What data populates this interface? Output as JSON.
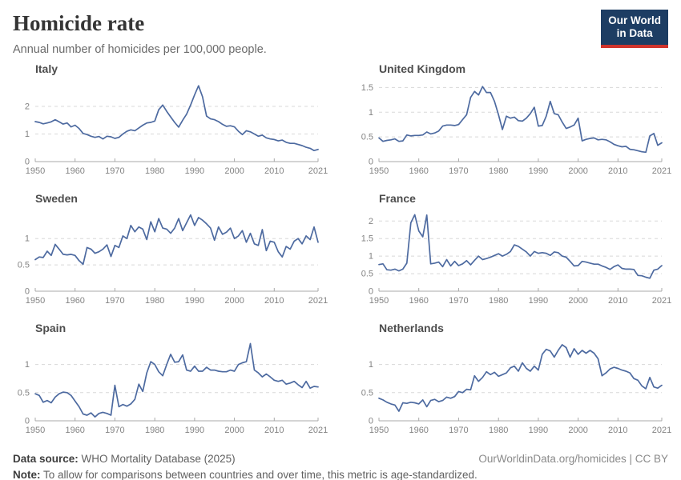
{
  "header": {
    "title": "Homicide rate",
    "subtitle": "Annual number of homicides per 100,000 people.",
    "logo": {
      "line1": "Our World",
      "line2": "in Data"
    }
  },
  "colors": {
    "line": "#4d6aa0",
    "grid": "#d8d8d8",
    "axis": "#a9a9a9",
    "tick_label": "#838383",
    "facet_title": "#4d4d4d",
    "logo_bg": "#1d3d63",
    "logo_bar": "#d0342c"
  },
  "chart_data": [
    {
      "type": "line",
      "title": "Italy",
      "x_start": 1950,
      "x_end": 2021,
      "x_ticks": [
        1950,
        1960,
        1970,
        1980,
        1990,
        2000,
        2010,
        2021
      ],
      "ylim": [
        0,
        2.9
      ],
      "y_ticks": [
        0,
        1,
        2
      ],
      "grid": true,
      "values": [
        1.45,
        1.42,
        1.37,
        1.4,
        1.44,
        1.52,
        1.44,
        1.36,
        1.4,
        1.26,
        1.32,
        1.2,
        1.02,
        0.98,
        0.92,
        0.88,
        0.91,
        0.82,
        0.92,
        0.9,
        0.84,
        0.88,
        1.0,
        1.1,
        1.15,
        1.12,
        1.22,
        1.32,
        1.4,
        1.42,
        1.47,
        1.88,
        2.05,
        1.82,
        1.62,
        1.42,
        1.25,
        1.5,
        1.72,
        2.05,
        2.42,
        2.75,
        2.35,
        1.65,
        1.55,
        1.52,
        1.45,
        1.35,
        1.28,
        1.3,
        1.26,
        1.1,
        0.98,
        1.12,
        1.08,
        1.0,
        0.92,
        0.96,
        0.86,
        0.82,
        0.8,
        0.75,
        0.78,
        0.7,
        0.66,
        0.66,
        0.62,
        0.58,
        0.52,
        0.48,
        0.4,
        0.44
      ]
    },
    {
      "type": "line",
      "title": "United Kingdom",
      "x_start": 1950,
      "x_end": 2021,
      "x_ticks": [
        1950,
        1960,
        1970,
        1980,
        1990,
        2000,
        2010,
        2021
      ],
      "ylim": [
        0,
        1.62
      ],
      "y_ticks": [
        0,
        0.5,
        1,
        1.5
      ],
      "grid": true,
      "values": [
        0.48,
        0.41,
        0.43,
        0.44,
        0.46,
        0.41,
        0.42,
        0.54,
        0.52,
        0.53,
        0.53,
        0.54,
        0.6,
        0.56,
        0.58,
        0.62,
        0.72,
        0.74,
        0.74,
        0.73,
        0.75,
        0.85,
        0.95,
        1.3,
        1.42,
        1.35,
        1.52,
        1.4,
        1.4,
        1.22,
        0.95,
        0.65,
        0.92,
        0.88,
        0.9,
        0.83,
        0.82,
        0.88,
        0.97,
        1.1,
        0.72,
        0.73,
        0.92,
        1.22,
        0.97,
        0.95,
        0.8,
        0.67,
        0.7,
        0.74,
        0.88,
        0.42,
        0.45,
        0.47,
        0.48,
        0.44,
        0.45,
        0.44,
        0.4,
        0.35,
        0.32,
        0.3,
        0.31,
        0.25,
        0.24,
        0.22,
        0.2,
        0.19,
        0.52,
        0.57,
        0.33,
        0.38
      ]
    },
    {
      "type": "line",
      "title": "Sweden",
      "x_start": 1950,
      "x_end": 2021,
      "x_ticks": [
        1950,
        1960,
        1970,
        1980,
        1990,
        2000,
        2010,
        2021
      ],
      "ylim": [
        0,
        1.52
      ],
      "y_ticks": [
        0,
        0.5,
        1
      ],
      "grid": true,
      "values": [
        0.6,
        0.65,
        0.64,
        0.76,
        0.68,
        0.89,
        0.8,
        0.7,
        0.69,
        0.7,
        0.68,
        0.58,
        0.51,
        0.83,
        0.8,
        0.72,
        0.75,
        0.8,
        0.88,
        0.66,
        0.87,
        0.83,
        1.05,
        1.0,
        1.25,
        1.13,
        1.22,
        1.18,
        0.98,
        1.32,
        1.13,
        1.38,
        1.2,
        1.18,
        1.1,
        1.2,
        1.38,
        1.15,
        1.3,
        1.45,
        1.25,
        1.4,
        1.35,
        1.28,
        1.2,
        0.97,
        1.22,
        1.08,
        1.12,
        1.2,
        1.0,
        1.05,
        1.15,
        0.93,
        1.1,
        0.9,
        0.87,
        1.17,
        0.77,
        0.95,
        0.93,
        0.75,
        0.65,
        0.85,
        0.8,
        0.95,
        1.0,
        0.9,
        1.05,
        0.98,
        1.22,
        0.93
      ]
    },
    {
      "type": "line",
      "title": "France",
      "x_start": 1950,
      "x_end": 2021,
      "x_ticks": [
        1950,
        1960,
        1970,
        1980,
        1990,
        2000,
        2010,
        2021
      ],
      "ylim": [
        0,
        2.28
      ],
      "y_ticks": [
        0,
        0.5,
        1,
        1.5,
        2
      ],
      "grid": true,
      "values": [
        0.76,
        0.78,
        0.61,
        0.6,
        0.63,
        0.58,
        0.63,
        0.8,
        1.95,
        2.18,
        1.72,
        1.55,
        2.17,
        0.78,
        0.8,
        0.83,
        0.7,
        0.9,
        0.72,
        0.85,
        0.73,
        0.78,
        0.87,
        0.75,
        0.88,
        1.0,
        0.9,
        0.93,
        0.97,
        1.02,
        1.07,
        1.0,
        1.05,
        1.13,
        1.32,
        1.28,
        1.2,
        1.12,
        1.0,
        1.13,
        1.08,
        1.1,
        1.08,
        1.02,
        1.12,
        1.1,
        1.0,
        0.97,
        0.85,
        0.72,
        0.73,
        0.85,
        0.83,
        0.8,
        0.77,
        0.77,
        0.72,
        0.68,
        0.62,
        0.7,
        0.75,
        0.65,
        0.63,
        0.63,
        0.62,
        0.45,
        0.44,
        0.4,
        0.37,
        0.6,
        0.63,
        0.73
      ]
    },
    {
      "type": "line",
      "title": "Spain",
      "x_start": 1950,
      "x_end": 2021,
      "x_ticks": [
        1950,
        1960,
        1970,
        1980,
        1990,
        2000,
        2010,
        2021
      ],
      "ylim": [
        0,
        1.42
      ],
      "y_ticks": [
        0,
        0.5,
        1
      ],
      "grid": true,
      "values": [
        0.48,
        0.45,
        0.33,
        0.36,
        0.32,
        0.42,
        0.48,
        0.51,
        0.5,
        0.45,
        0.35,
        0.25,
        0.12,
        0.1,
        0.14,
        0.07,
        0.13,
        0.15,
        0.13,
        0.1,
        0.63,
        0.25,
        0.29,
        0.26,
        0.3,
        0.38,
        0.65,
        0.52,
        0.85,
        1.05,
        1.0,
        0.87,
        0.8,
        1.0,
        1.18,
        1.04,
        1.05,
        1.17,
        0.9,
        0.88,
        0.97,
        0.88,
        0.88,
        0.95,
        0.9,
        0.9,
        0.88,
        0.87,
        0.87,
        0.9,
        0.88,
        1.0,
        1.03,
        1.05,
        1.37,
        0.9,
        0.85,
        0.78,
        0.83,
        0.78,
        0.72,
        0.7,
        0.72,
        0.65,
        0.67,
        0.7,
        0.64,
        0.59,
        0.7,
        0.58,
        0.61,
        0.6
      ]
    },
    {
      "type": "line",
      "title": "Netherlands",
      "x_start": 1950,
      "x_end": 2021,
      "x_ticks": [
        1950,
        1960,
        1970,
        1980,
        1990,
        2000,
        2010,
        2021
      ],
      "ylim": [
        0,
        1.42
      ],
      "y_ticks": [
        0,
        0.5,
        1
      ],
      "grid": true,
      "values": [
        0.4,
        0.37,
        0.33,
        0.3,
        0.28,
        0.17,
        0.32,
        0.31,
        0.33,
        0.32,
        0.3,
        0.37,
        0.25,
        0.36,
        0.38,
        0.34,
        0.36,
        0.42,
        0.4,
        0.43,
        0.52,
        0.5,
        0.56,
        0.55,
        0.8,
        0.7,
        0.77,
        0.87,
        0.82,
        0.86,
        0.79,
        0.82,
        0.85,
        0.94,
        0.97,
        0.88,
        1.03,
        0.93,
        0.88,
        0.97,
        0.9,
        1.18,
        1.27,
        1.24,
        1.13,
        1.25,
        1.35,
        1.3,
        1.13,
        1.28,
        1.18,
        1.25,
        1.2,
        1.25,
        1.2,
        1.1,
        0.8,
        0.85,
        0.92,
        0.95,
        0.93,
        0.9,
        0.88,
        0.85,
        0.75,
        0.72,
        0.62,
        0.57,
        0.77,
        0.6,
        0.58,
        0.63
      ]
    }
  ],
  "footer": {
    "source_label": "Data source:",
    "source_value": " WHO Mortality Database (2025)",
    "attribution": "OurWorldinData.org/homicides | CC BY",
    "note_label": "Note:",
    "note_value": " To allow for comparisons between countries and over time, this metric is age-standardized."
  }
}
